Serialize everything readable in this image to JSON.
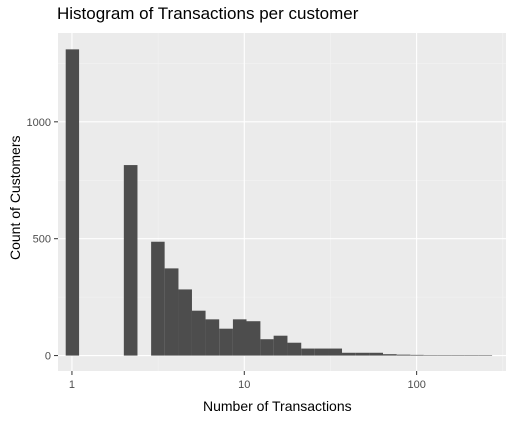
{
  "chart_data": {
    "type": "bar",
    "title": "Histogram of Transactions per customer",
    "xlabel": "Number of Transactions",
    "ylabel": "Count of Customers",
    "x_scale": "log10",
    "xlim": [
      0.83,
      330
    ],
    "ylim": [
      -66,
      1380
    ],
    "x_ticks": [
      {
        "value": 1,
        "label": "1"
      },
      {
        "value": 10,
        "label": "10"
      },
      {
        "value": 100,
        "label": "100"
      }
    ],
    "y_ticks": [
      {
        "value": 0,
        "label": "0"
      },
      {
        "value": 500,
        "label": "500"
      },
      {
        "value": 1000,
        "label": "1000"
      }
    ],
    "grid": true,
    "bins": [
      {
        "from": 0.92,
        "to": 1.1,
        "count": 1310
      },
      {
        "from": 2.0,
        "to": 2.4,
        "count": 815
      },
      {
        "from": 2.88,
        "to": 3.45,
        "count": 487
      },
      {
        "from": 3.45,
        "to": 4.15,
        "count": 373
      },
      {
        "from": 4.15,
        "to": 4.97,
        "count": 283
      },
      {
        "from": 4.97,
        "to": 5.96,
        "count": 192
      },
      {
        "from": 5.96,
        "to": 7.15,
        "count": 155
      },
      {
        "from": 7.15,
        "to": 8.59,
        "count": 115
      },
      {
        "from": 8.59,
        "to": 10.3,
        "count": 155
      },
      {
        "from": 10.3,
        "to": 12.4,
        "count": 147
      },
      {
        "from": 12.4,
        "to": 14.8,
        "count": 70
      },
      {
        "from": 14.8,
        "to": 17.8,
        "count": 85
      },
      {
        "from": 17.8,
        "to": 21.4,
        "count": 55
      },
      {
        "from": 21.4,
        "to": 25.6,
        "count": 30
      },
      {
        "from": 25.6,
        "to": 30.8,
        "count": 30
      },
      {
        "from": 30.8,
        "to": 36.9,
        "count": 30
      },
      {
        "from": 36.9,
        "to": 44.3,
        "count": 12
      },
      {
        "from": 44.3,
        "to": 53.2,
        "count": 12
      },
      {
        "from": 53.2,
        "to": 63.8,
        "count": 12
      },
      {
        "from": 63.8,
        "to": 76.6,
        "count": 6
      },
      {
        "from": 76.6,
        "to": 91.9,
        "count": 4
      },
      {
        "from": 91.9,
        "to": 110,
        "count": 3
      },
      {
        "from": 110,
        "to": 132,
        "count": 2
      },
      {
        "from": 132,
        "to": 159,
        "count": 2
      },
      {
        "from": 159,
        "to": 190,
        "count": 1
      },
      {
        "from": 190,
        "to": 229,
        "count": 1
      },
      {
        "from": 229,
        "to": 274,
        "count": 1
      }
    ],
    "colors": {
      "bar": "#4d4d4d",
      "panel": "#ebebeb",
      "grid_major": "#ffffff",
      "grid_minor": "#f4f4f4"
    }
  }
}
